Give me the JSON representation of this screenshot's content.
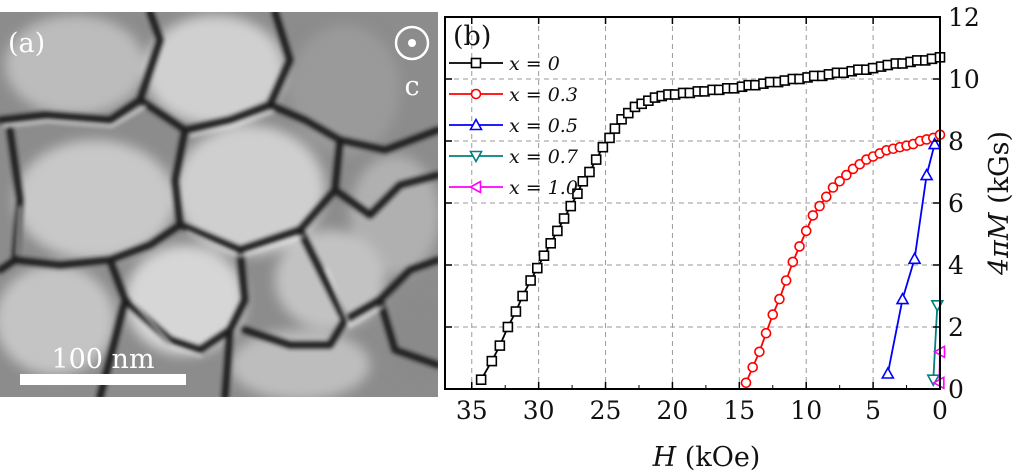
{
  "micrograph": {
    "panel_label": "(a)",
    "c_axis_label": "c",
    "scale_bar_label": "100 nm"
  },
  "chart_data": {
    "type": "line",
    "panel_label": "(b)",
    "xlabel_symbol": "H",
    "xlabel_unit": " (kOe)",
    "ylabel_symbol": "4πM",
    "ylabel_unit": " (kGs)",
    "xlim": [
      37,
      0
    ],
    "ylim": [
      0,
      12
    ],
    "x_axis_reversed": true,
    "x_ticks": [
      35,
      30,
      25,
      20,
      15,
      10,
      5,
      0
    ],
    "y_ticks": [
      0,
      2,
      4,
      6,
      8,
      10,
      12
    ],
    "y_axis_side": "right",
    "grid": true,
    "legend_position": "top-left",
    "series": [
      {
        "name": "x = 0",
        "color": "#000000",
        "marker": "square",
        "x": [
          34.3,
          33.5,
          32.9,
          32.3,
          31.7,
          31.2,
          30.6,
          30.1,
          29.6,
          29.1,
          28.6,
          28.1,
          27.6,
          27.1,
          26.7,
          26.2,
          25.7,
          25.2,
          24.7,
          24.3,
          23.8,
          23.3,
          22.8,
          22.3,
          21.8,
          21.3,
          20.8,
          20.3,
          19.8,
          19.2,
          18.7,
          18.1,
          17.6,
          17.0,
          16.5,
          15.9,
          15.4,
          14.8,
          14.3,
          13.8,
          13.2,
          12.7,
          12.1,
          11.6,
          11.0,
          10.5,
          9.9,
          9.4,
          8.8,
          8.3,
          7.7,
          7.2,
          6.6,
          6.1,
          5.5,
          5.0,
          4.4,
          3.9,
          3.3,
          2.8,
          2.2,
          1.7,
          1.1,
          0.6,
          0.0
        ],
        "y": [
          0.3,
          0.9,
          1.4,
          2.0,
          2.5,
          3.0,
          3.5,
          3.9,
          4.3,
          4.7,
          5.1,
          5.5,
          5.9,
          6.3,
          6.7,
          7.0,
          7.4,
          7.8,
          8.1,
          8.4,
          8.7,
          8.9,
          9.1,
          9.2,
          9.3,
          9.4,
          9.45,
          9.5,
          9.5,
          9.55,
          9.55,
          9.6,
          9.6,
          9.65,
          9.65,
          9.7,
          9.7,
          9.75,
          9.8,
          9.8,
          9.85,
          9.9,
          9.9,
          9.95,
          10.0,
          10.0,
          10.05,
          10.1,
          10.1,
          10.15,
          10.2,
          10.2,
          10.25,
          10.3,
          10.3,
          10.35,
          10.4,
          10.45,
          10.5,
          10.5,
          10.55,
          10.6,
          10.6,
          10.65,
          10.7
        ]
      },
      {
        "name": "x = 0.3",
        "color": "#ff0000",
        "marker": "circle",
        "x": [
          14.5,
          14.0,
          13.5,
          13.0,
          12.5,
          12.0,
          11.5,
          11.0,
          10.5,
          10.0,
          9.5,
          9.0,
          8.5,
          8.0,
          7.5,
          7.0,
          6.5,
          6.0,
          5.5,
          5.0,
          4.5,
          4.0,
          3.5,
          3.0,
          2.5,
          2.0,
          1.5,
          1.0,
          0.5,
          0.0
        ],
        "y": [
          0.2,
          0.7,
          1.2,
          1.8,
          2.4,
          2.9,
          3.5,
          4.1,
          4.6,
          5.1,
          5.6,
          5.9,
          6.2,
          6.5,
          6.7,
          6.9,
          7.1,
          7.25,
          7.4,
          7.5,
          7.6,
          7.7,
          7.75,
          7.8,
          7.85,
          7.9,
          8.0,
          8.05,
          8.1,
          8.2
        ]
      },
      {
        "name": "x = 0.5",
        "color": "#0000ff",
        "marker": "triangle-up",
        "x": [
          3.9,
          2.8,
          1.9,
          1.0,
          0.4
        ],
        "y": [
          0.5,
          2.9,
          4.2,
          6.9,
          7.9
        ]
      },
      {
        "name": "x = 0.7",
        "color": "#008080",
        "marker": "triangle-down",
        "x": [
          0.5,
          0.2
        ],
        "y": [
          0.3,
          2.7
        ]
      },
      {
        "name": "x = 1.0",
        "color": "#ff00ff",
        "marker": "triangle-left",
        "x": [
          0.05,
          0.0
        ],
        "y": [
          0.2,
          1.2
        ]
      }
    ]
  }
}
